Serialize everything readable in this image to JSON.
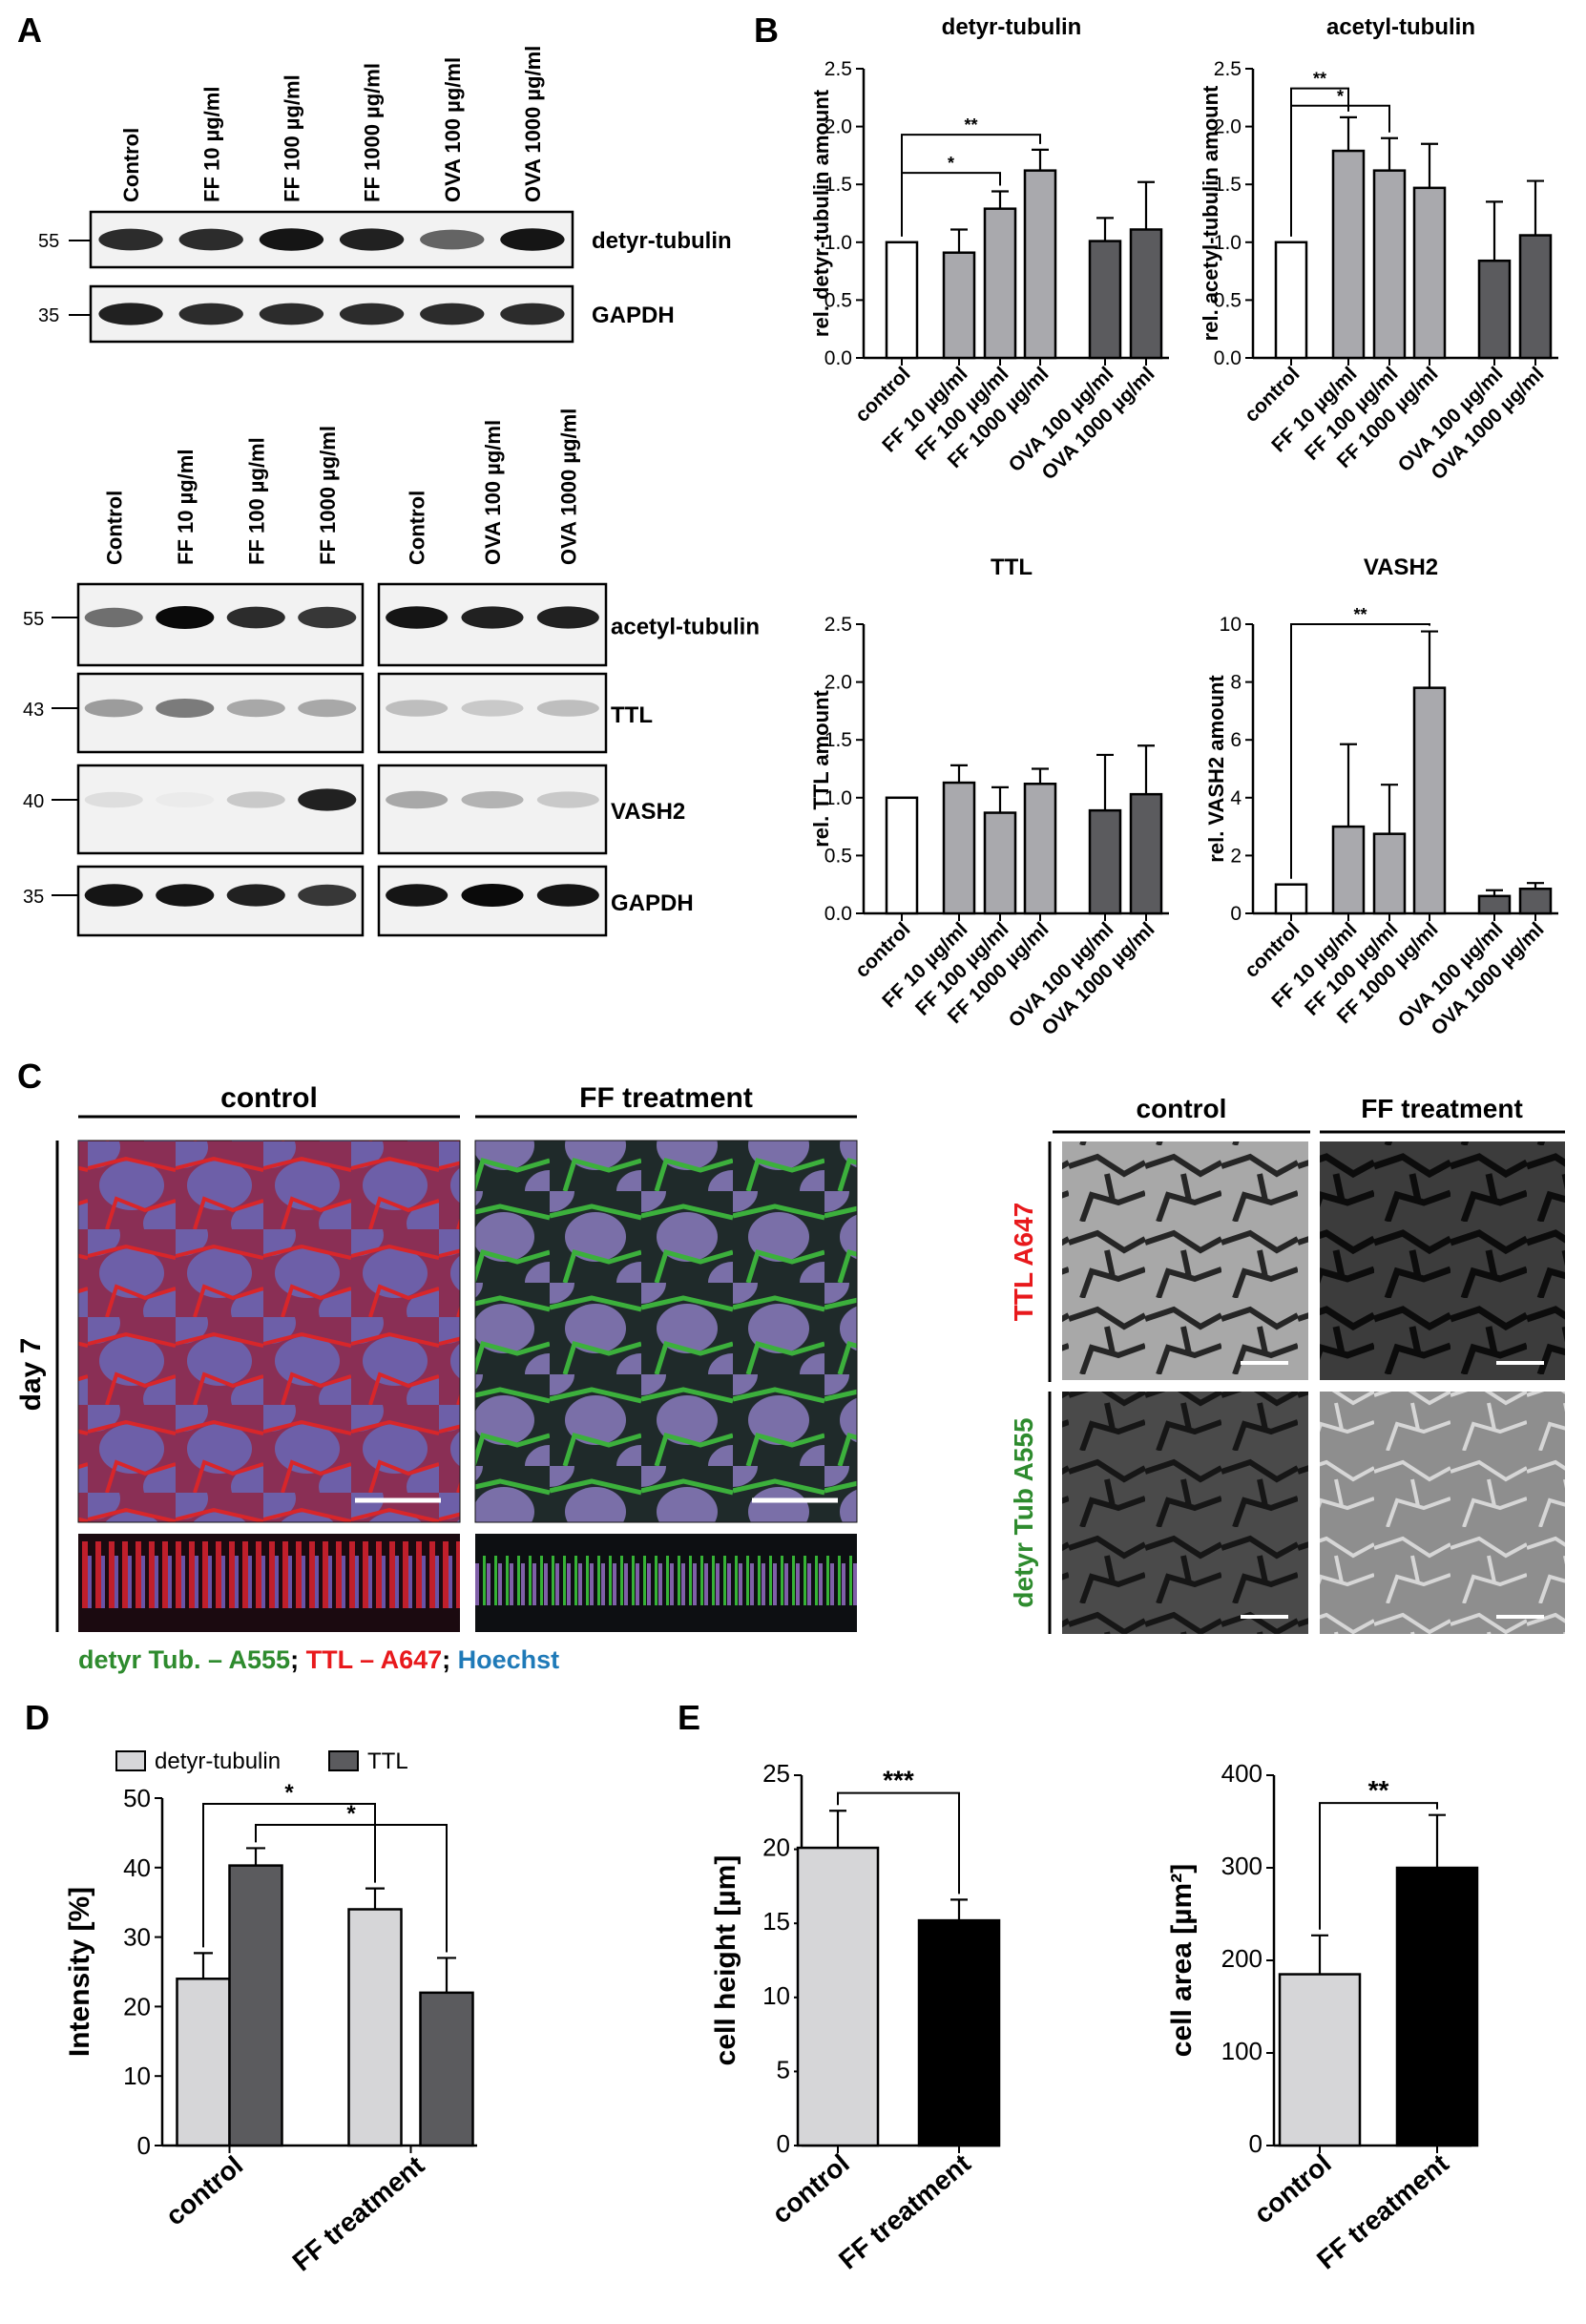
{
  "panels": {
    "A": "A",
    "B": "B",
    "C": "C",
    "D": "D",
    "E": "E"
  },
  "western_top": {
    "lanes": [
      "Control",
      "FF 10 µg/ml",
      "FF 100 µg/ml",
      "FF 1000 µg/ml",
      "OVA 100 µg/ml",
      "OVA 1000 µg/ml"
    ],
    "markers": [
      "55",
      "35"
    ],
    "rows": [
      "detyr-tubulin",
      "GAPDH"
    ],
    "intensities": [
      [
        0.85,
        0.85,
        0.95,
        0.9,
        0.6,
        0.95
      ],
      [
        0.9,
        0.85,
        0.85,
        0.85,
        0.85,
        0.85
      ]
    ]
  },
  "western_bottom": {
    "lanes_left": [
      "Control",
      "FF 10 µg/ml",
      "FF 100 µg/ml",
      "FF 1000 µg/ml"
    ],
    "lanes_right": [
      "Control",
      "OVA 100 µg/ml",
      "OVA 1000 µg/ml"
    ],
    "markers": [
      "55",
      "43",
      "40",
      "35"
    ],
    "rows": [
      "acetyl-tubulin",
      "TTL",
      "VASH2",
      "GAPDH"
    ],
    "intensities": [
      [
        0.55,
        1.0,
        0.85,
        0.8,
        0.95,
        0.9,
        0.9
      ],
      [
        0.35,
        0.5,
        0.3,
        0.3,
        0.2,
        0.15,
        0.2
      ],
      [
        0.06,
        0.0,
        0.15,
        0.9,
        0.3,
        0.25,
        0.15
      ],
      [
        0.95,
        0.95,
        0.9,
        0.8,
        0.95,
        1.0,
        0.95
      ]
    ]
  },
  "panel_b_categories": [
    "control",
    "FF 10 µg/ml",
    "FF 100 µg/ml",
    "FF 1000 µg/ml",
    "OVA 100 µg/ml",
    "OVA 1000 µg/ml"
  ],
  "panel_c": {
    "col_left": "control",
    "col_right": "FF treatment",
    "row_label": "day 7",
    "legend": [
      {
        "text": "detyr Tub. – A555",
        "color": "#2e8b2e"
      },
      {
        "text": "; ",
        "color": "#000000"
      },
      {
        "text": "TTL – A647",
        "color": "#e8191c"
      },
      {
        "text": "; ",
        "color": "#000000"
      },
      {
        "text": "Hoechst",
        "color": "#1f7ab8"
      }
    ],
    "gray_col_left": "control",
    "gray_col_right": "FF treatment",
    "gray_row1": "TTL A647",
    "gray_row1_color": "#e8191c",
    "gray_row2": "detyr Tub A555",
    "gray_row2_color": "#2e8b2e"
  },
  "chart_data": [
    {
      "id": "b1",
      "type": "bar",
      "title": "detyr-tubulin",
      "ylabel": "rel. detyr-tubulin amount",
      "ylim": [
        0,
        2.5
      ],
      "yticks": [
        "0.0",
        "0.5",
        "1.0",
        "1.5",
        "2.0",
        "2.5"
      ],
      "categories": [
        "control",
        "FF 10 µg/ml",
        "FF 100 µg/ml",
        "FF 1000 µg/ml",
        "OVA 100 µg/ml",
        "OVA 1000 µg/ml"
      ],
      "values": [
        1.0,
        0.91,
        1.29,
        1.62,
        1.01,
        1.11
      ],
      "errors": [
        0.0,
        0.2,
        0.15,
        0.18,
        0.2,
        0.41
      ],
      "colors": [
        "#ffffff",
        "#a9a9ad",
        "#a9a9ad",
        "#a9a9ad",
        "#5b5b5e",
        "#5b5b5e"
      ],
      "sig": [
        {
          "from": 0,
          "to": 2,
          "label": "*",
          "y": 1.6
        },
        {
          "from": 0,
          "to": 3,
          "label": "**",
          "y": 1.93
        }
      ]
    },
    {
      "id": "b2",
      "type": "bar",
      "title": "acetyl-tubulin",
      "ylabel": "rel. acetyl-tubulin amount",
      "ylim": [
        0,
        2.5
      ],
      "yticks": [
        "0.0",
        "0.5",
        "1.0",
        "1.5",
        "2.0",
        "2.5"
      ],
      "categories": [
        "control",
        "FF 10 µg/ml",
        "FF 100 µg/ml",
        "FF 1000 µg/ml",
        "OVA 100 µg/ml",
        "OVA 1000 µg/ml"
      ],
      "values": [
        1.0,
        1.79,
        1.62,
        1.47,
        0.84,
        1.06
      ],
      "errors": [
        0.0,
        0.29,
        0.28,
        0.38,
        0.51,
        0.47
      ],
      "colors": [
        "#ffffff",
        "#a9a9ad",
        "#a9a9ad",
        "#a9a9ad",
        "#5b5b5e",
        "#5b5b5e"
      ],
      "sig": [
        {
          "from": 0,
          "to": 2,
          "label": "*",
          "y": 2.18
        },
        {
          "from": 0,
          "to": 1,
          "label": "**",
          "y": 2.33
        }
      ]
    },
    {
      "id": "b3",
      "type": "bar",
      "title": "TTL",
      "ylabel": "rel. TTL amount",
      "ylim": [
        0,
        2.5
      ],
      "yticks": [
        "0.0",
        "0.5",
        "1.0",
        "1.5",
        "2.0",
        "2.5"
      ],
      "categories": [
        "control",
        "FF 10 µg/ml",
        "FF 100 µg/ml",
        "FF 1000 µg/ml",
        "OVA 100 µg/ml",
        "OVA 1000 µg/ml"
      ],
      "values": [
        1.0,
        1.13,
        0.87,
        1.12,
        0.89,
        1.03
      ],
      "errors": [
        0.0,
        0.15,
        0.22,
        0.13,
        0.48,
        0.42
      ],
      "colors": [
        "#ffffff",
        "#a9a9ad",
        "#a9a9ad",
        "#a9a9ad",
        "#5b5b5e",
        "#5b5b5e"
      ],
      "sig": []
    },
    {
      "id": "b4",
      "type": "bar",
      "title": "VASH2",
      "ylabel": "rel. VASH2 amount",
      "ylim": [
        0,
        10
      ],
      "yticks": [
        "0",
        "2",
        "4",
        "6",
        "8",
        "10"
      ],
      "categories": [
        "control",
        "FF 10 µg/ml",
        "FF 100 µg/ml",
        "FF 1000 µg/ml",
        "OVA 100 µg/ml",
        "OVA 1000 µg/ml"
      ],
      "values": [
        1.0,
        3.0,
        2.75,
        7.8,
        0.6,
        0.85
      ],
      "errors": [
        0.0,
        2.85,
        1.7,
        1.95,
        0.2,
        0.2
      ],
      "colors": [
        "#ffffff",
        "#a9a9ad",
        "#a9a9ad",
        "#a9a9ad",
        "#5b5b5e",
        "#5b5b5e"
      ],
      "sig": [
        {
          "from": 0,
          "to": 3,
          "label": "**",
          "y": 10.0
        }
      ]
    },
    {
      "id": "d",
      "type": "bar",
      "ylabel": "Intensity [%]",
      "ylim": [
        0,
        50
      ],
      "yticks": [
        "0",
        "10",
        "20",
        "30",
        "40",
        "50"
      ],
      "categories": [
        "control",
        "FF treatment"
      ],
      "series": [
        {
          "name": "detyr-tubulin",
          "values": [
            24,
            34
          ],
          "errors": [
            3.7,
            3.0
          ],
          "color": "#d6d6d8"
        },
        {
          "name": "TTL",
          "values": [
            40.3,
            22
          ],
          "errors": [
            2.5,
            5.0
          ],
          "color": "#5b5b5e"
        }
      ],
      "legend": "top"
    },
    {
      "id": "e1",
      "type": "bar",
      "ylabel": "cell height [µm]",
      "ylim": [
        0,
        25
      ],
      "yticks": [
        "0",
        "5",
        "10",
        "15",
        "20",
        "25"
      ],
      "categories": [
        "control",
        "FF treatment"
      ],
      "values": [
        20.1,
        15.2
      ],
      "errors": [
        2.5,
        1.4
      ],
      "colors": [
        "#d6d6d8",
        "#000000"
      ],
      "sig": [
        {
          "from": 0,
          "to": 1,
          "label": "***",
          "y": 23.8
        }
      ]
    },
    {
      "id": "e2",
      "type": "bar",
      "ylabel": "cell area [µm²]",
      "ylim": [
        0,
        400
      ],
      "yticks": [
        "0",
        "100",
        "200",
        "300",
        "400"
      ],
      "categories": [
        "control",
        "FF treatment"
      ],
      "values": [
        185,
        300
      ],
      "errors": [
        42,
        57
      ],
      "colors": [
        "#d6d6d8",
        "#000000"
      ],
      "sig": [
        {
          "from": 0,
          "to": 1,
          "label": "**",
          "y": 370
        }
      ]
    }
  ]
}
